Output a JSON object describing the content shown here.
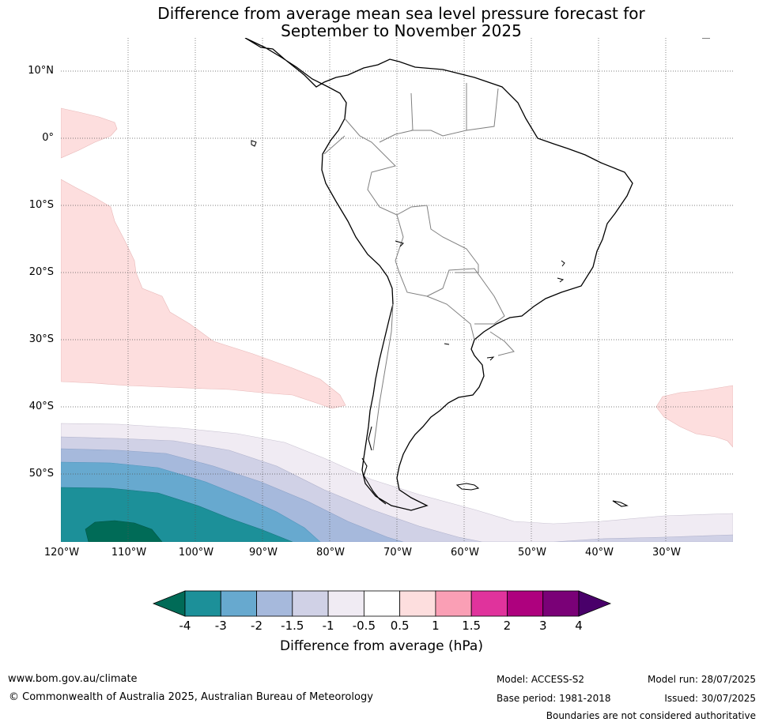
{
  "title_line1": "Difference from average mean sea level pressure forecast for",
  "title_line2": "September to November 2025",
  "lat_labels": [
    "10°N",
    "0°",
    "10°S",
    "20°S",
    "30°S",
    "40°S",
    "50°S"
  ],
  "lon_labels": [
    "120°W",
    "110°W",
    "100°W",
    "90°W",
    "80°W",
    "70°W",
    "60°W",
    "50°W",
    "40°W",
    "30°W"
  ],
  "colorbar": {
    "title": "Difference from average (hPa)",
    "ticks": [
      "-4",
      "-3",
      "-2",
      "-1.5",
      "-1",
      "-0.5",
      "0.5",
      "1",
      "1.5",
      "2",
      "3",
      "4"
    ],
    "colors": [
      "#1c9099",
      "#67a9cf",
      "#a6b9dc",
      "#d0d1e6",
      "#f0ebf3",
      "#ffffff",
      "#fddede",
      "#fa9fb5",
      "#e0339c",
      "#ae017e",
      "#7a0177"
    ],
    "under_color": "#006b57",
    "over_color": "#49006a"
  },
  "footer": {
    "website": "www.bom.gov.au/climate",
    "copyright": "© Commonwealth of Australia 2025, Australian Bureau of Meteorology",
    "model": "Model: ACCESS-S2",
    "base_period": "Base period: 1981-2018",
    "model_run": "Model run: 28/07/2025",
    "issued": "Issued: 30/07/2025",
    "boundaries_note": "Boundaries are not considered authoritative"
  }
}
